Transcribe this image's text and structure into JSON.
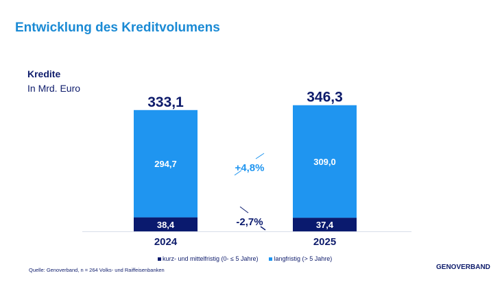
{
  "title": "Entwicklung des Kreditvolumens",
  "subtitle": "Kredite",
  "unit": "In Mrd. Euro",
  "source": "Quelle: Genoverband, n = 264 Volks- und Raiffeisenbanken",
  "logo": "GENOVERBAND",
  "chart_data": {
    "type": "bar",
    "stacked": true,
    "categories": [
      "2024",
      "2025"
    ],
    "series": [
      {
        "name": "kurz- und mittelfristig (0- ≤ 5 Jahre)",
        "values": [
          38.4,
          37.4
        ],
        "labels": [
          "38,4",
          "37,4"
        ],
        "color": "#0a1a6e"
      },
      {
        "name": "langfristig (> 5 Jahre)",
        "values": [
          294.7,
          309.0
        ],
        "labels": [
          "294,7",
          "309,0"
        ],
        "color": "#1f95f0"
      }
    ],
    "totals": [
      "333,1",
      "346,3"
    ],
    "annotations": [
      {
        "text": "+4,8%",
        "series": "langfristig",
        "color": "#1f95f0"
      },
      {
        "text": "-2,7%",
        "series": "kurz- und mittelfristig",
        "color": "#0a1a6e"
      }
    ],
    "legend": "bottom",
    "grid": false
  }
}
